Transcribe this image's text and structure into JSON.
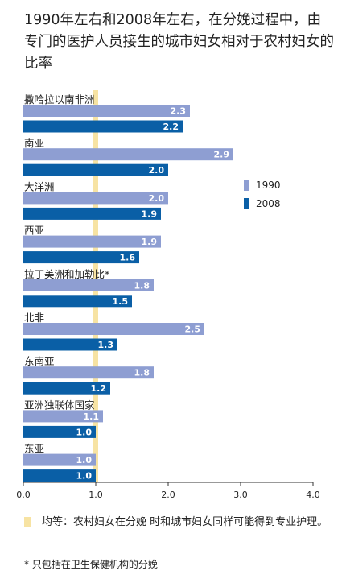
{
  "title": "1990年左右和2008年左右，在分娩过程中，由专门的医护人员接生的城市妇女相对于农村妇女的比率",
  "legend": [
    {
      "name": "1990",
      "color": "#8e9ed2"
    },
    {
      "name": "2008",
      "color": "#0a5fa6"
    }
  ],
  "equal_note": "均等：农村妇女在分娩 时和城市妇女同样可能得到专业护理。",
  "footnote": "* 只包括在卫生保健机构的分娩",
  "chart_data": {
    "type": "bar",
    "orientation": "horizontal",
    "categories": [
      "撒哈拉以南非洲",
      "南亚",
      "大洋洲",
      "西亚",
      "拉丁美洲和加勒比*",
      "北非",
      "东南亚",
      "亚洲独联体国家",
      "东亚"
    ],
    "series": [
      {
        "name": "1990",
        "color": "#8e9ed2",
        "values": [
          2.3,
          2.9,
          2.0,
          1.9,
          1.8,
          2.5,
          1.8,
          1.1,
          1.0
        ]
      },
      {
        "name": "2008",
        "color": "#0a5fa6",
        "values": [
          2.2,
          2.0,
          1.9,
          1.6,
          1.5,
          1.3,
          1.2,
          1.0,
          1.0
        ]
      }
    ],
    "xlim": [
      0,
      4
    ],
    "xticks": [
      "0.0",
      "1.0",
      "2.0",
      "3.0",
      "4.0"
    ],
    "reference_line": {
      "value": 1.0,
      "color": "#f7e3a3"
    },
    "legend_position": "right"
  }
}
